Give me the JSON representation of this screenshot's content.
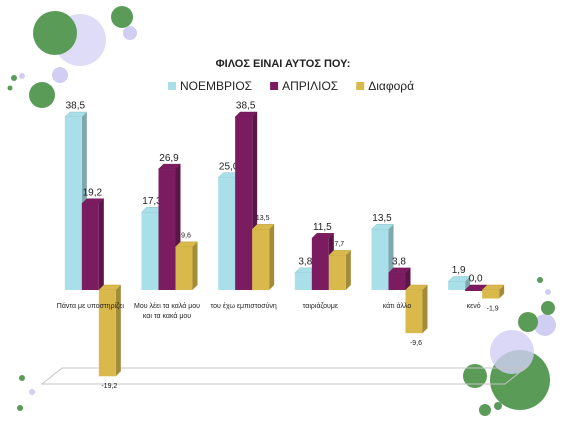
{
  "chart_data": {
    "type": "bar3d",
    "title": "ΦΙΛΟΣ ΕΙΝΑΙ ΑΥΤΟΣ ΠΟΥ:",
    "categories": [
      "Πάντα με υποστηρίζει",
      "Μου λέει τα καλά μου και τα κακά μου",
      "του έχω εμπιστοσύνη",
      "ταιριάζουμε",
      "κάτι άλλο",
      "κενό"
    ],
    "series": [
      {
        "name": "ΝΟΕΜΒΡΙΟΣ",
        "color": "#a9dfe8",
        "values": [
          38.5,
          17.3,
          25.0,
          3.8,
          13.5,
          1.9
        ],
        "value_labels": [
          "38,5",
          "17,3",
          "25,0",
          "3,8",
          "13,5",
          "1,9"
        ]
      },
      {
        "name": "ΑΠΡΙΛΙΟΣ",
        "color": "#7b1c60",
        "values": [
          19.2,
          26.9,
          38.5,
          11.5,
          3.8,
          0.0
        ],
        "value_labels": [
          "19,2",
          "26,9",
          "38,5",
          "11,5",
          "3,8",
          "0,0"
        ]
      },
      {
        "name": "Διαφορά",
        "color": "#d9b94c",
        "values": [
          -19.2,
          9.6,
          13.5,
          7.7,
          -9.6,
          -1.9
        ],
        "value_labels": [
          "-19,2",
          "9,6",
          "13,5",
          "7,7",
          "-9,6",
          "-1,9"
        ]
      }
    ]
  }
}
